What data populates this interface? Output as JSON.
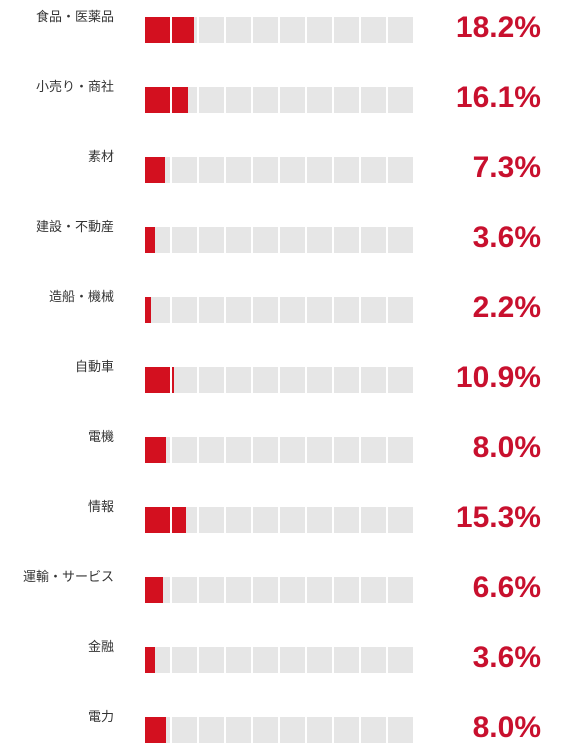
{
  "chart_data": {
    "type": "bar",
    "categories": [
      "食品・医薬品",
      "小売り・商社",
      "素材",
      "建設・不動産",
      "造船・機械",
      "自動車",
      "電機",
      "情報",
      "運輸・サービス",
      "金融",
      "電力"
    ],
    "values": [
      18.2,
      16.1,
      7.3,
      3.6,
      2.2,
      10.9,
      8.0,
      15.3,
      6.6,
      3.6,
      8.0
    ],
    "value_labels": [
      "18.2%",
      "16.1%",
      "7.3%",
      "3.6%",
      "2.2%",
      "10.9%",
      "8.0%",
      "15.3%",
      "6.6%",
      "3.6%",
      "8.0%"
    ],
    "xlim": [
      0,
      100
    ],
    "cells_per_bar": 10,
    "grid": false,
    "legend": "none"
  },
  "colors": {
    "fill": "#d3101f",
    "track": "#e6e6e6",
    "value_text": "#c8102e",
    "label_text": "#333333"
  }
}
